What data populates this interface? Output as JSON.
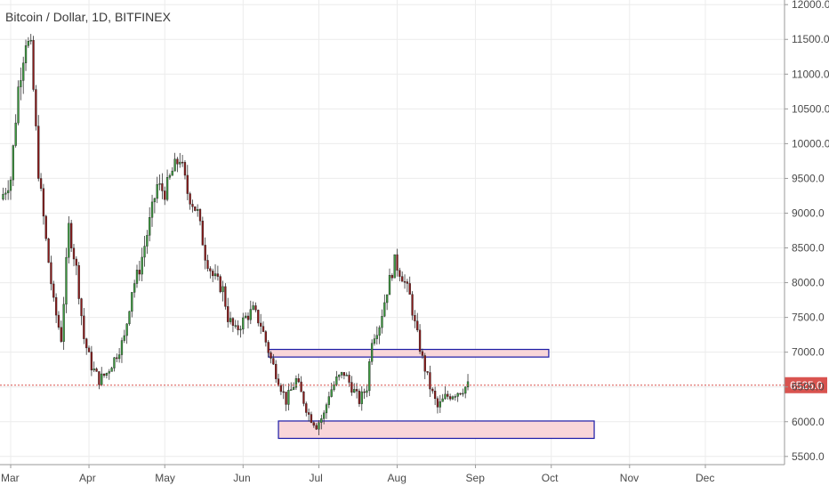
{
  "chart_data": {
    "type": "candlestick",
    "title": "Bitcoin / Dollar, 1D, BITFINEX",
    "xlabel": "",
    "ylabel": "",
    "ylim": [
      5500,
      12000
    ],
    "xlim_days": [
      0,
      305
    ],
    "yticks": [
      "12000.0",
      "11500.0",
      "11000.0",
      "10500.0",
      "10000.0",
      "9500.0",
      "9000.0",
      "8500.0",
      "8000.0",
      "7500.0",
      "7000.0",
      "6500.0",
      "6000.0",
      "5500.0"
    ],
    "ytick_values": [
      12000,
      11500,
      11000,
      10500,
      10000,
      9500,
      9000,
      8500,
      8000,
      7500,
      7000,
      6500,
      6000,
      5500
    ],
    "xticks": [
      "Mar",
      "Apr",
      "May",
      "Jun",
      "Jul",
      "Aug",
      "Sep",
      "Oct",
      "Nov",
      "Dec"
    ],
    "xtick_days": [
      0,
      31,
      61,
      92,
      122,
      153,
      184,
      214,
      245,
      275
    ],
    "grid": true,
    "current_price": 6525.0,
    "current_price_label": "6525.0",
    "colors": {
      "up": "#3c9a3f",
      "down": "#8b1a1a",
      "zone_fill": "#f9d6d9",
      "zone_stroke": "#1a1aa6",
      "price_line": "#d9534f"
    },
    "zones": [
      {
        "day_start": 102,
        "day_end": 213,
        "low": 6930,
        "high": 7040
      },
      {
        "day_start": 106,
        "day_end": 231,
        "low": 5760,
        "high": 6010
      }
    ],
    "anchors": [
      [
        -4,
        9200
      ],
      [
        0,
        9500
      ],
      [
        3,
        10800
      ],
      [
        6,
        11500
      ],
      [
        8,
        11350
      ],
      [
        11,
        9600
      ],
      [
        14,
        8600
      ],
      [
        17,
        7700
      ],
      [
        20,
        7200
      ],
      [
        23,
        8800
      ],
      [
        26,
        8200
      ],
      [
        29,
        7200
      ],
      [
        32,
        6800
      ],
      [
        35,
        6600
      ],
      [
        38,
        6700
      ],
      [
        41,
        6900
      ],
      [
        45,
        7200
      ],
      [
        48,
        7900
      ],
      [
        51,
        8200
      ],
      [
        54,
        8700
      ],
      [
        58,
        9400
      ],
      [
        61,
        9300
      ],
      [
        64,
        9600
      ],
      [
        67,
        9800
      ],
      [
        70,
        9300
      ],
      [
        74,
        9000
      ],
      [
        77,
        8400
      ],
      [
        80,
        8100
      ],
      [
        84,
        7900
      ],
      [
        86,
        7500
      ],
      [
        89,
        7300
      ],
      [
        93,
        7500
      ],
      [
        96,
        7600
      ],
      [
        99,
        7400
      ],
      [
        103,
        6900
      ],
      [
        106,
        6600
      ],
      [
        109,
        6300
      ],
      [
        113,
        6600
      ],
      [
        116,
        6300
      ],
      [
        118,
        6100
      ],
      [
        121,
        5950
      ],
      [
        124,
        6100
      ],
      [
        126,
        6400
      ],
      [
        129,
        6600
      ],
      [
        132,
        6700
      ],
      [
        135,
        6500
      ],
      [
        138,
        6300
      ],
      [
        141,
        6500
      ],
      [
        143,
        7200
      ],
      [
        146,
        7400
      ],
      [
        149,
        7900
      ],
      [
        152,
        8300
      ],
      [
        155,
        8100
      ],
      [
        158,
        7800
      ],
      [
        160,
        7400
      ],
      [
        163,
        6900
      ],
      [
        166,
        6500
      ],
      [
        169,
        6200
      ],
      [
        172,
        6350
      ],
      [
        175,
        6400
      ],
      [
        178,
        6450
      ],
      [
        181,
        6520
      ]
    ]
  }
}
